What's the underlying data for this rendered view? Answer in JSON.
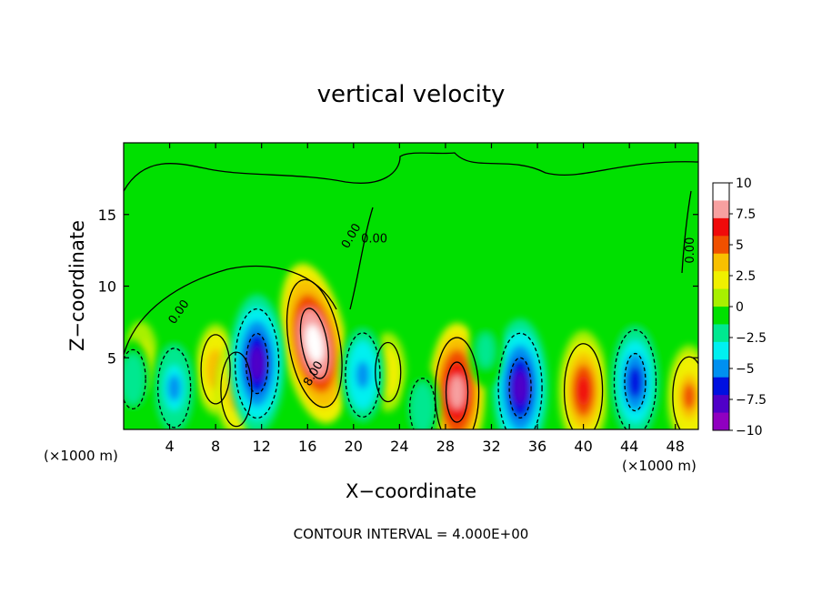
{
  "chart_data": {
    "type": "heatmap",
    "title": "vertical velocity",
    "xlabel": "X−coordinate",
    "ylabel": "Z−coordinate",
    "x_unit": "(×1000 m)",
    "y_unit": "(×1000 m)",
    "footer": "CONTOUR INTERVAL = 4.000E+00",
    "xlim": [
      0,
      50
    ],
    "ylim": [
      0,
      20
    ],
    "xticks": [
      4,
      8,
      12,
      16,
      20,
      24,
      28,
      32,
      36,
      40,
      44,
      48
    ],
    "yticks": [
      5,
      10,
      15
    ],
    "colorbar": {
      "range": [
        -10,
        10
      ],
      "ticks": [
        "10",
        "7.5",
        "5",
        "2.5",
        "0",
        "−2.5",
        "−5",
        "−7.5",
        "−10"
      ],
      "colors": [
        "#ffffff",
        "#f7a0a0",
        "#f00a0a",
        "#f05000",
        "#f8c000",
        "#f0f000",
        "#a8f000",
        "#00e000",
        "#00e890",
        "#00f0f0",
        "#0090f0",
        "#0010e0",
        "#5000c8",
        "#9000c0"
      ]
    },
    "contour_labels": [
      "0.00",
      "0.00",
      "0.00",
      "0.00",
      "8.00"
    ],
    "features": [
      {
        "kind": "updraft",
        "x": 16.6,
        "z": 6.0,
        "peak": 10.0
      },
      {
        "kind": "updraft",
        "x": 29.0,
        "z": 2.6,
        "peak": 8.0
      },
      {
        "kind": "updraft",
        "x": 40.0,
        "z": 2.7,
        "peak": 6.5
      },
      {
        "kind": "updraft",
        "x": 8.0,
        "z": 4.2,
        "peak": 4.0
      },
      {
        "kind": "updraft",
        "x": 9.8,
        "z": 2.8,
        "peak": 4.5
      },
      {
        "kind": "updraft",
        "x": 49.2,
        "z": 2.3,
        "peak": 5.0
      },
      {
        "kind": "updraft",
        "x": 23.0,
        "z": 4.0,
        "peak": 3.0
      },
      {
        "kind": "updraft",
        "x": 1.5,
        "z": 5.0,
        "peak": 2.5
      },
      {
        "kind": "downdraft",
        "x": 11.6,
        "z": 4.6,
        "peak": -8.0
      },
      {
        "kind": "downdraft",
        "x": 34.5,
        "z": 2.9,
        "peak": -8.0
      },
      {
        "kind": "downdraft",
        "x": 44.5,
        "z": 3.3,
        "peak": -7.5
      },
      {
        "kind": "downdraft",
        "x": 20.8,
        "z": 3.8,
        "peak": -5.5
      },
      {
        "kind": "downdraft",
        "x": 4.4,
        "z": 2.9,
        "peak": -5.0
      },
      {
        "kind": "downdraft",
        "x": 26.0,
        "z": 1.5,
        "peak": -3.0
      },
      {
        "kind": "downdraft",
        "x": 0.8,
        "z": 3.5,
        "peak": -3.0
      },
      {
        "kind": "downdraft",
        "x": 31.5,
        "z": 5.5,
        "peak": -2.5
      }
    ]
  }
}
